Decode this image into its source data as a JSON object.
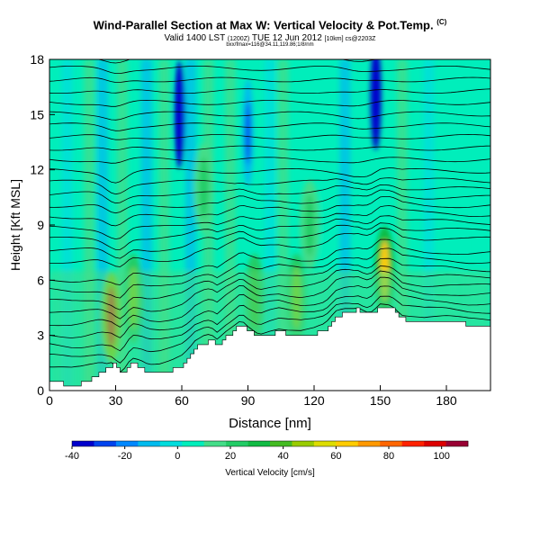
{
  "header": {
    "title": "Wind-Parallel Section at Max W: Vertical Velocity & Pot.Temp.",
    "title_mark": "(C)",
    "valid_line": "Valid 1400 LST",
    "valid_paren": "(1200Z)",
    "valid_date": "TUE 12 Jun 2012",
    "valid_run": "[10km] cs@2203Z",
    "subline": "bxx/fmax=116@34.11,119.86;1/8/nm"
  },
  "chart_data": {
    "type": "heatmap",
    "description_kind": "cross-section filled contour with isentrope overlay",
    "xlabel": "Distance [nm]",
    "ylabel": "Height [Kft MSL]",
    "xlim": [
      0,
      200
    ],
    "ylim": [
      0,
      18
    ],
    "x_ticks": [
      "0",
      "30",
      "60",
      "90",
      "120",
      "150",
      "180"
    ],
    "y_ticks": [
      "0",
      "3",
      "6",
      "9",
      "12",
      "15",
      "18"
    ],
    "x_tick_values": [
      0,
      30,
      60,
      90,
      120,
      150,
      180
    ],
    "y_tick_values": [
      0,
      3,
      6,
      9,
      12,
      15,
      18
    ],
    "terrain_nm_kft": [
      [
        0,
        0.5
      ],
      [
        5,
        0.4
      ],
      [
        10,
        0.3
      ],
      [
        15,
        0.4
      ],
      [
        20,
        0.7
      ],
      [
        25,
        1.2
      ],
      [
        29,
        1.5
      ],
      [
        31,
        1.0
      ],
      [
        33,
        0.8
      ],
      [
        35,
        1.3
      ],
      [
        38,
        1.5
      ],
      [
        42,
        1.2
      ],
      [
        45,
        0.9
      ],
      [
        50,
        0.9
      ],
      [
        55,
        1.1
      ],
      [
        60,
        1.4
      ],
      [
        63,
        1.8
      ],
      [
        66,
        2.3
      ],
      [
        70,
        2.6
      ],
      [
        73,
        2.7
      ],
      [
        76,
        2.4
      ],
      [
        80,
        2.9
      ],
      [
        84,
        3.3
      ],
      [
        87,
        3.6
      ],
      [
        90,
        3.3
      ],
      [
        95,
        2.9
      ],
      [
        100,
        3.1
      ],
      [
        104,
        3.2
      ],
      [
        108,
        3.1
      ],
      [
        114,
        3.0
      ],
      [
        120,
        3.1
      ],
      [
        125,
        3.3
      ],
      [
        130,
        4.0
      ],
      [
        135,
        4.3
      ],
      [
        140,
        4.4
      ],
      [
        145,
        4.1
      ],
      [
        150,
        4.5
      ],
      [
        155,
        4.4
      ],
      [
        160,
        3.9
      ],
      [
        165,
        3.8
      ],
      [
        170,
        3.7
      ],
      [
        180,
        3.7
      ],
      [
        190,
        3.6
      ],
      [
        200,
        3.6
      ]
    ],
    "updraft_cores": [
      {
        "x_nm": 28,
        "z_kft": 4.0,
        "w_cms": 90
      },
      {
        "x_nm": 38,
        "z_kft": 5.0,
        "w_cms": 45
      },
      {
        "x_nm": 93,
        "z_kft": 5.0,
        "w_cms": 40
      },
      {
        "x_nm": 112,
        "z_kft": 5.0,
        "w_cms": 45
      },
      {
        "x_nm": 152,
        "z_kft": 6.5,
        "w_cms": 60
      },
      {
        "x_nm": 70,
        "z_kft": 11.0,
        "w_cms": 25
      },
      {
        "x_nm": 118,
        "z_kft": 9.0,
        "w_cms": 20
      }
    ],
    "downdraft_cores": [
      {
        "x_nm": 59,
        "z_kft": 15.0,
        "w_cms": -40
      },
      {
        "x_nm": 148,
        "z_kft": 16.0,
        "w_cms": -35
      },
      {
        "x_nm": 90,
        "z_kft": 14.0,
        "w_cms": -15
      }
    ],
    "isentrope_count": 30,
    "colorbar": {
      "label": "Vertical Velocity [cm/s]",
      "min": -40,
      "max": 110,
      "tick_labels": [
        "-40",
        "-20",
        "0",
        "20",
        "40",
        "60",
        "80",
        "100"
      ],
      "tick_values": [
        -40,
        -20,
        0,
        20,
        40,
        60,
        80,
        100
      ],
      "colors": [
        "#0000cc",
        "#0044ee",
        "#0088ff",
        "#00bbee",
        "#00dddd",
        "#00eebb",
        "#44dd88",
        "#22cc66",
        "#11bb44",
        "#44bb22",
        "#99cc00",
        "#dddd00",
        "#ffcc00",
        "#ff9900",
        "#ff6600",
        "#ff2200",
        "#dd0000",
        "#990033"
      ]
    },
    "grid": false
  }
}
